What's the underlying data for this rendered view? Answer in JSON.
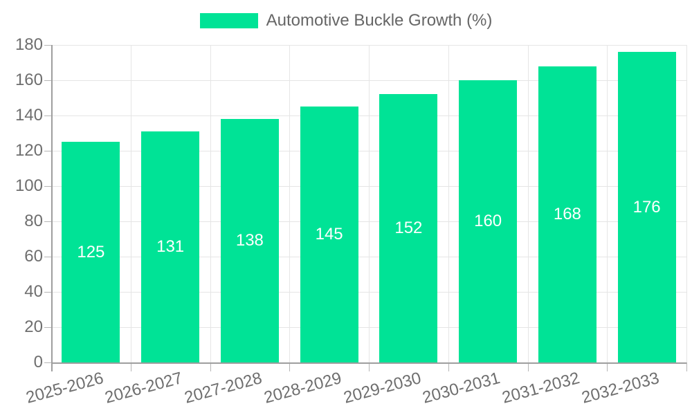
{
  "legend": {
    "label": "Automotive Buckle Growth (%)"
  },
  "chart_data": {
    "type": "bar",
    "title": "Automotive Buckle Growth (%)",
    "categories": [
      "2025-2026",
      "2026-2027",
      "2027-2028",
      "2028-2029",
      "2029-2030",
      "2030-2031",
      "2031-2032",
      "2032-2033"
    ],
    "values": [
      125,
      131,
      138,
      145,
      152,
      160,
      168,
      176
    ],
    "series": [
      {
        "name": "Automotive Buckle Growth (%)",
        "values": [
          125,
          131,
          138,
          145,
          152,
          160,
          168,
          176
        ]
      }
    ],
    "xlabel": "",
    "ylabel": "",
    "ylim": [
      0,
      180
    ],
    "ytick_step": 20,
    "ytick_labels": [
      "0",
      "20",
      "40",
      "60",
      "80",
      "100",
      "120",
      "140",
      "160",
      "180"
    ],
    "grid": true,
    "legend_position": "top",
    "bar_color": "#00e396",
    "value_label_color": "#ffffff",
    "axis_text_color": "#6e6e6e",
    "grid_color": "#e5e5e5",
    "axis_line_color": "#9e9e9e"
  }
}
